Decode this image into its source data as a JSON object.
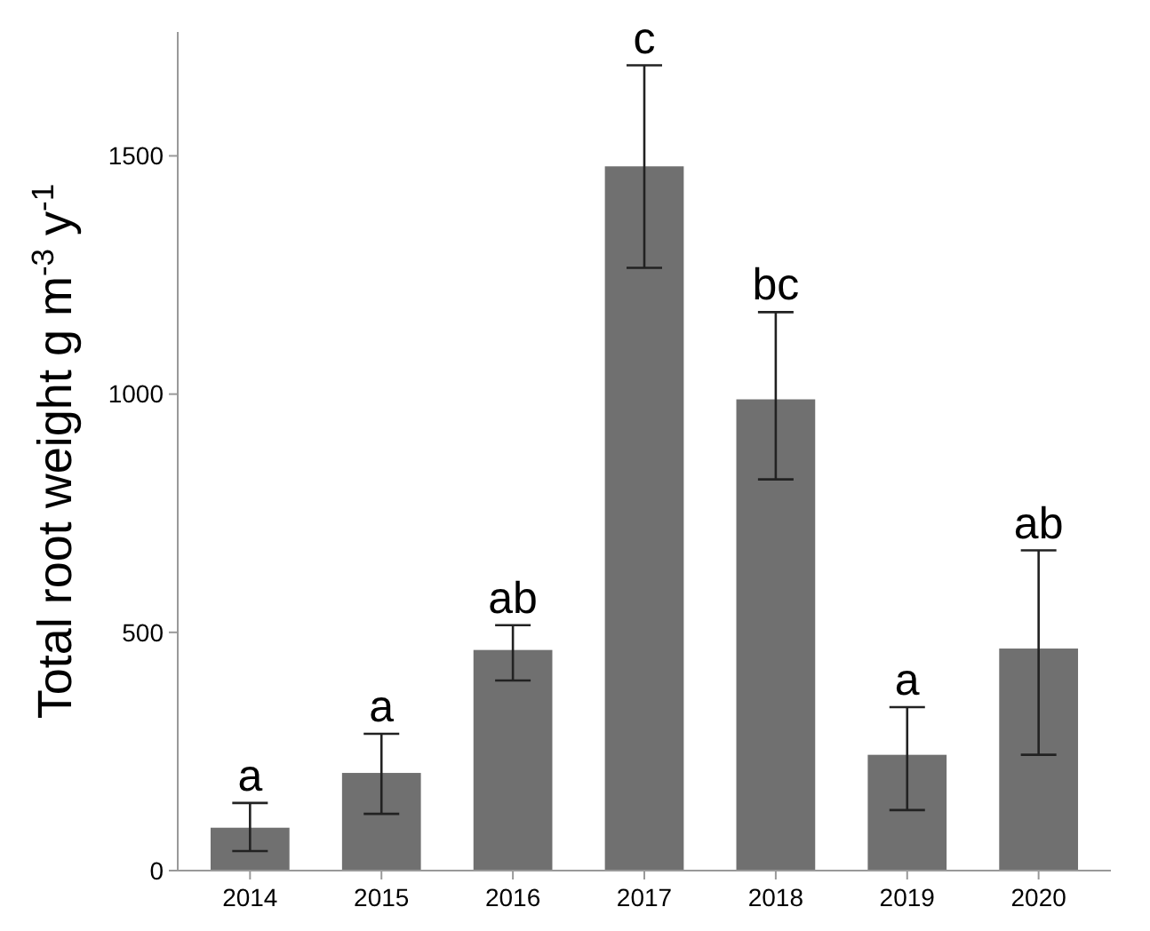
{
  "chart_data": {
    "type": "bar",
    "ylabel": "Total root weight g m$^{-3}$ y$^{-1}$",
    "categories": [
      "2014",
      "2015",
      "2016",
      "2017",
      "2018",
      "2019",
      "2020"
    ],
    "values": [
      90,
      205,
      463,
      1478,
      989,
      243,
      466
    ],
    "errors": [
      [
        41,
        142
      ],
      [
        119,
        287
      ],
      [
        399,
        515
      ],
      [
        1265,
        1690
      ],
      [
        821,
        1172
      ],
      [
        127,
        343
      ],
      [
        243,
        672
      ]
    ],
    "color": "#707070",
    "ylim": [
      0,
      1760
    ],
    "yticks": [
      0,
      500,
      1000,
      1500
    ],
    "grid": false,
    "annotations": [
      {
        "text": "a",
        "x": "2014",
        "y": 142
      },
      {
        "text": "a",
        "x": "2015",
        "y": 287
      },
      {
        "text": "ab",
        "x": "2016",
        "y": 515
      },
      {
        "text": "c",
        "x": "2017",
        "y": 1690
      },
      {
        "text": "bc",
        "x": "2018",
        "y": 1172
      },
      {
        "text": "a",
        "x": "2019",
        "y": 343
      },
      {
        "text": "ab",
        "x": "2020",
        "y": 672
      }
    ]
  }
}
